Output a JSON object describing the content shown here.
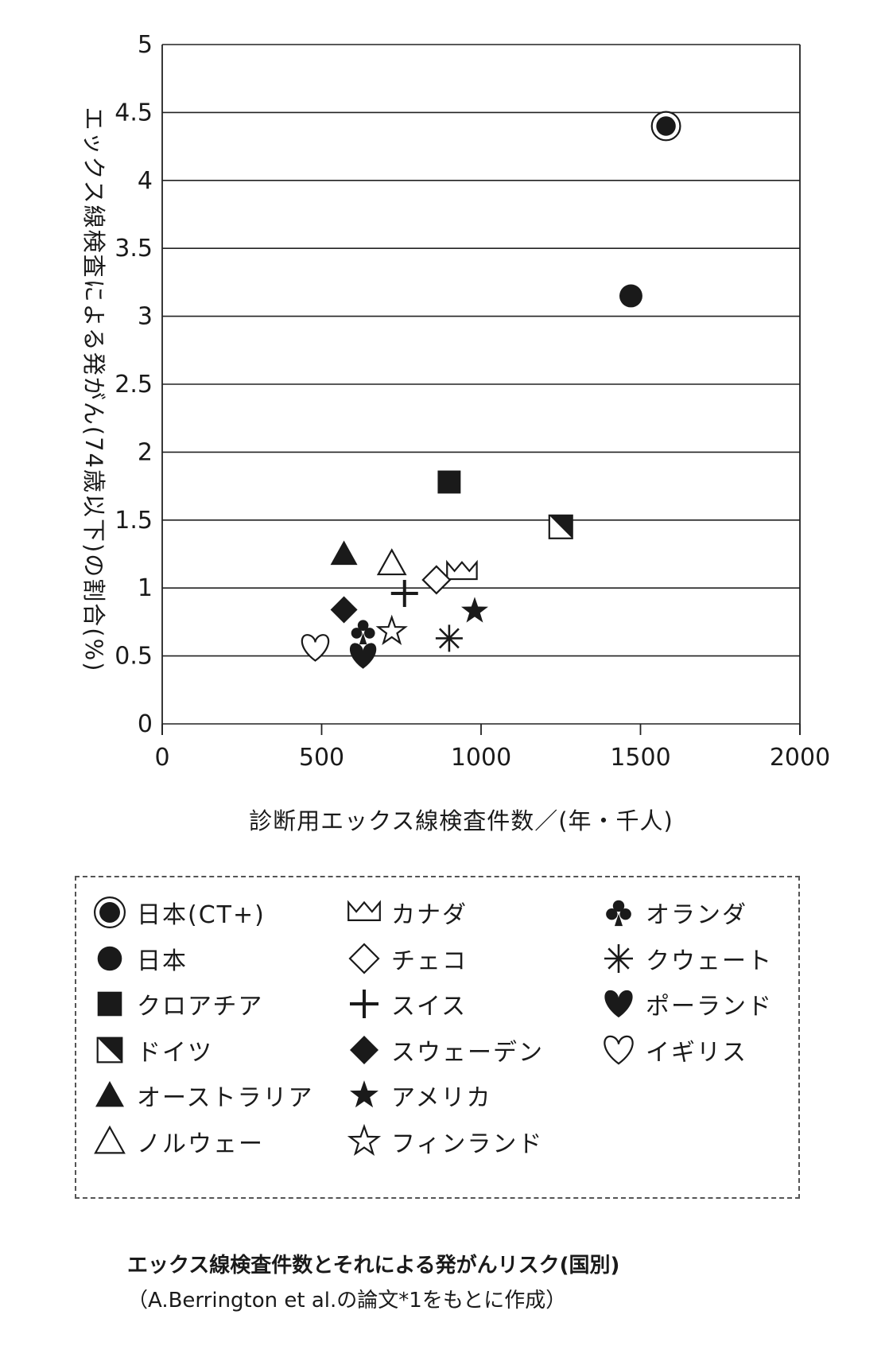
{
  "chart_data": {
    "type": "scatter",
    "xlabel": "診断用エックス線検査件数／(年・千人)",
    "ylabel": "エックス線検査による発がん(74歳以下)の割合(%)",
    "xlim": [
      0,
      2000
    ],
    "ylim": [
      0,
      5
    ],
    "xticks": [
      "0",
      "500",
      "1000",
      "1500",
      "2000"
    ],
    "yticks": [
      "0",
      "0.5",
      "1",
      "1.5",
      "2",
      "2.5",
      "3",
      "3.5",
      "4",
      "4.5",
      "5"
    ],
    "grid": "horizontal",
    "legend_position": "bottom",
    "series": [
      {
        "name": "日本(CT+)",
        "marker": "circle-ring",
        "x": 1580,
        "y": 4.4
      },
      {
        "name": "日本",
        "marker": "circle",
        "x": 1470,
        "y": 3.15
      },
      {
        "name": "クロアチア",
        "marker": "square",
        "x": 900,
        "y": 1.78
      },
      {
        "name": "ドイツ",
        "marker": "square-half",
        "x": 1250,
        "y": 1.45
      },
      {
        "name": "オーストラリア",
        "marker": "triangle",
        "x": 570,
        "y": 1.25
      },
      {
        "name": "ノルウェー",
        "marker": "triangle-open",
        "x": 720,
        "y": 1.18
      },
      {
        "name": "カナダ",
        "marker": "crown",
        "x": 940,
        "y": 1.12
      },
      {
        "name": "チェコ",
        "marker": "diamond-open",
        "x": 860,
        "y": 1.06
      },
      {
        "name": "スイス",
        "marker": "plus",
        "x": 760,
        "y": 0.96
      },
      {
        "name": "スウェーデン",
        "marker": "diamond",
        "x": 570,
        "y": 0.84
      },
      {
        "name": "アメリカ",
        "marker": "star",
        "x": 980,
        "y": 0.83
      },
      {
        "name": "フィンランド",
        "marker": "star-open",
        "x": 720,
        "y": 0.68
      },
      {
        "name": "オランダ",
        "marker": "club",
        "x": 630,
        "y": 0.68
      },
      {
        "name": "クウェート",
        "marker": "asterisk",
        "x": 900,
        "y": 0.63
      },
      {
        "name": "ポーランド",
        "marker": "heart",
        "x": 630,
        "y": 0.5
      },
      {
        "name": "イギリス",
        "marker": "heart-open",
        "x": 480,
        "y": 0.56
      }
    ]
  },
  "caption": {
    "line1": "エックス線検査件数とそれによる発がんリスク(国別)",
    "line2": "（A.Berrington et al.の論文*1をもとに作成）"
  }
}
